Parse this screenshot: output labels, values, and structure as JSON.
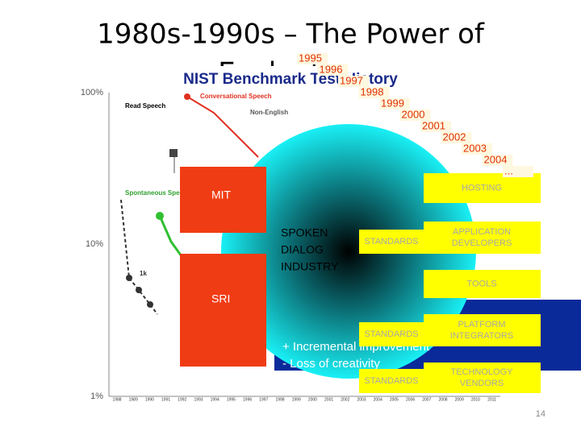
{
  "slide": {
    "title_line1": "1980s-1990s – The Power of",
    "title_line2": "Evaluation",
    "figure": {
      "title": "NIST Benchmark Test History",
      "y_labels": [
        "100%",
        "10%",
        "1%"
      ],
      "labels": [
        "Read Speech",
        "Conversational Speech",
        "Spontaneous Speech",
        "Non-English",
        "1k"
      ],
      "x_years": [
        "1988",
        "1989",
        "1990",
        "1991",
        "1992",
        "1993",
        "1994",
        "1995",
        "1996",
        "1997",
        "1998",
        "1999",
        "2000",
        "2001",
        "2002",
        "2003",
        "2004",
        "2005",
        "2006",
        "2007",
        "2008",
        "2009",
        "2010",
        "2011"
      ]
    },
    "years": [
      "1995",
      "1996",
      "1997",
      "1998",
      "1999",
      "2000",
      "2001",
      "2002",
      "2003",
      "2004",
      "..."
    ],
    "labs": [
      "MIT",
      "SRI"
    ],
    "industry": [
      "SPOKEN",
      "DIALOG",
      "INDUSTRY"
    ],
    "blue_box": [
      "+ Incremental improvement",
      "- Loss of creativity"
    ],
    "standards": [
      "STANDARDS",
      "STANDARDS",
      "STANDARDS"
    ],
    "roles": [
      "HOSTING",
      "APPLICATION DEVELOPERS",
      "TOOLS",
      "PLATFORM INTEGRATORS",
      "TECHNOLOGY VENDORS"
    ],
    "page_number": "14"
  }
}
